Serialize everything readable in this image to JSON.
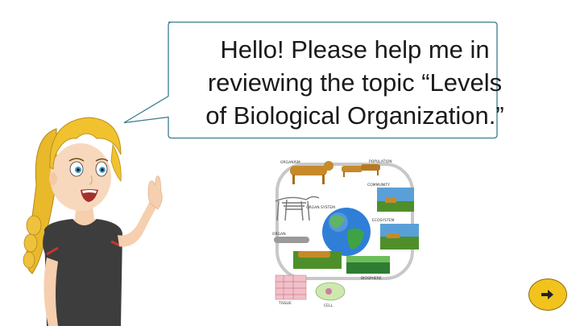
{
  "speech_bubble": {
    "lines": [
      "Hello! Please help me in",
      "reviewing the topic “Levels",
      "of Biological Organization.”"
    ]
  },
  "diagram": {
    "labels": {
      "organism": "ORGANISM",
      "population": "POPULATION",
      "community": "COMMUNITY",
      "organ_system": "ORGAN SYSTEM",
      "ecosystem": "ECOSYSTEM",
      "organ": "ORGAN",
      "biosphere": "BIOSPHERE",
      "tissue": "TISSUE",
      "cell": "CELL"
    }
  },
  "navigation": {
    "next_icon": "arrow-right-icon"
  },
  "colors": {
    "bubble_border": "#3c7d8c",
    "button_fill": "#f2c31d"
  }
}
